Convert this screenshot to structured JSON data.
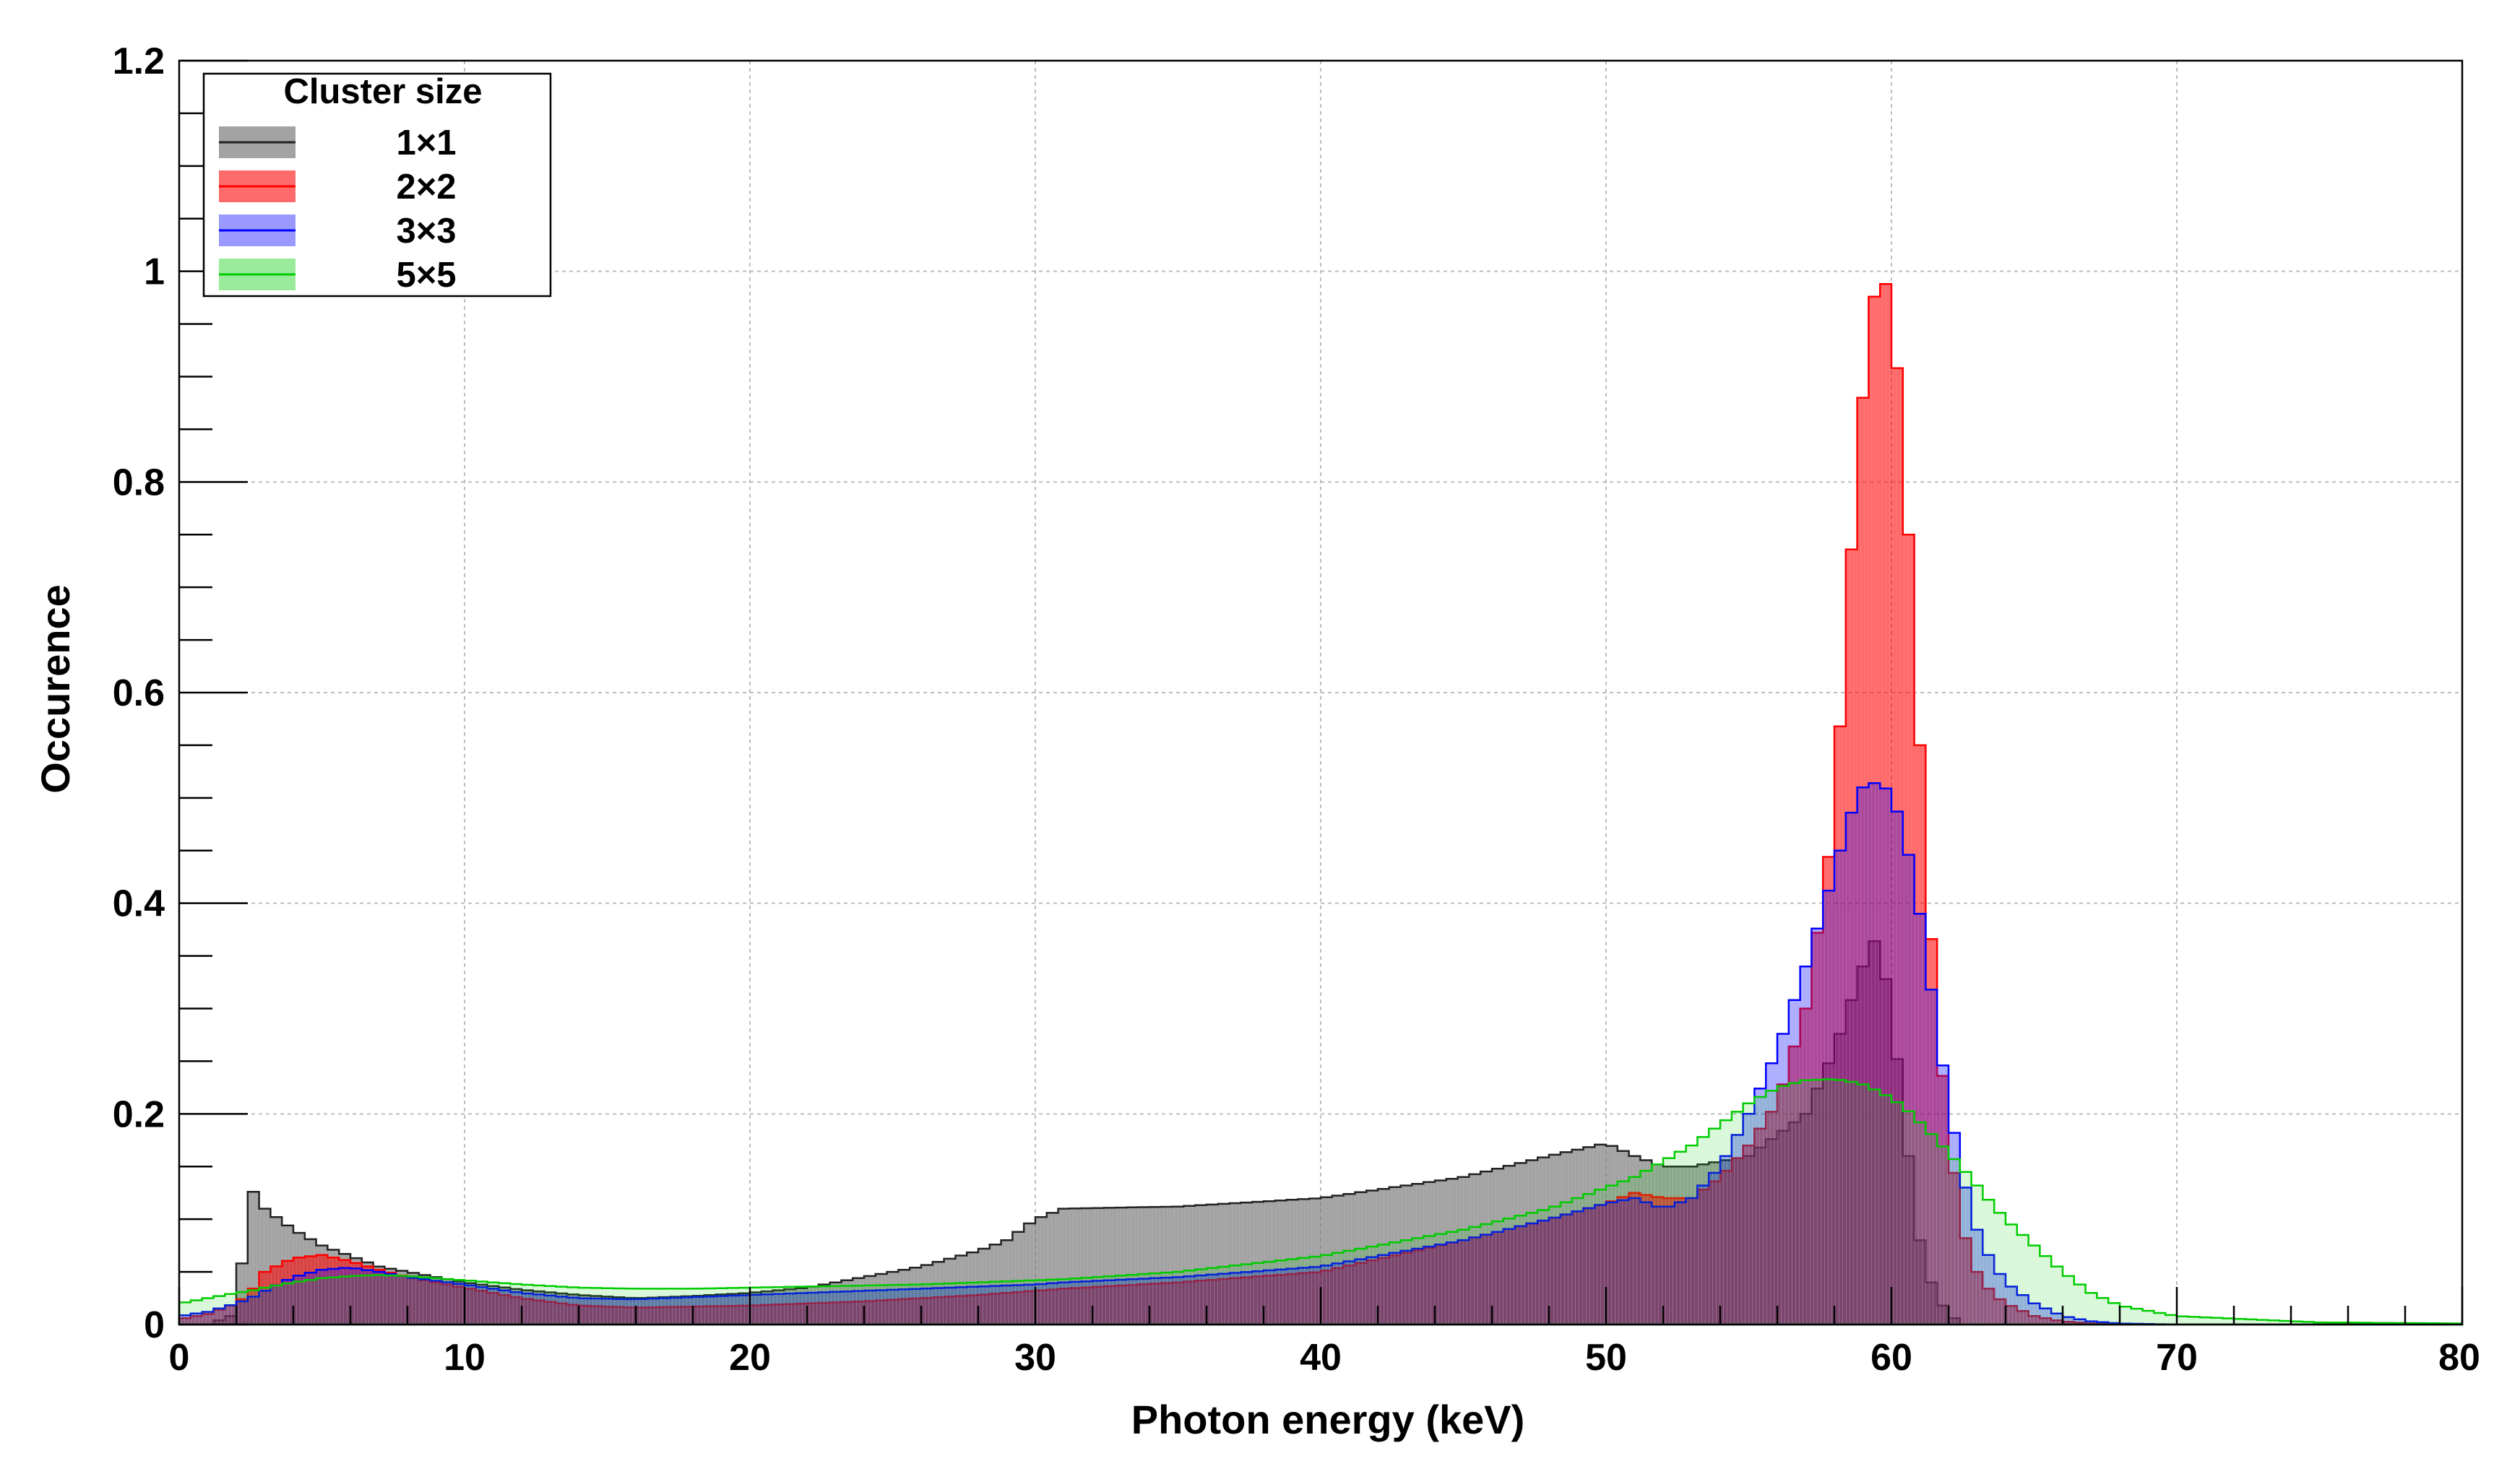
{
  "chart_data": {
    "type": "area",
    "xlabel": "Photon energy (keV)",
    "ylabel": "Occurence",
    "xlim": [
      0,
      80
    ],
    "ylim": [
      0,
      1.2
    ],
    "x_ticks": [
      "0",
      "10",
      "20",
      "30",
      "40",
      "50",
      "60",
      "70",
      "80"
    ],
    "y_ticks": [
      "0",
      "0.2",
      "0.4",
      "0.6",
      "0.8",
      "1",
      "1.2"
    ],
    "grid": true,
    "legend": {
      "title": "Cluster size",
      "placement": "top-left",
      "entries": [
        "1×1",
        "2×2",
        "3×3",
        "5×5"
      ]
    },
    "x": [
      0,
      1,
      2,
      2.5,
      3,
      4,
      5,
      6,
      7,
      8,
      10,
      12,
      14,
      16,
      18,
      20,
      22,
      24,
      26,
      28,
      29,
      30,
      31,
      35,
      40,
      45,
      48,
      50,
      51,
      52,
      53,
      54,
      55,
      56,
      57,
      58,
      58.5,
      59,
      59.5,
      60,
      60.5,
      61,
      61.5,
      62,
      62.5,
      63,
      63.5,
      64,
      65,
      66,
      67,
      68,
      70,
      75,
      80
    ],
    "series": [
      {
        "name": "1×1",
        "color": "#808080",
        "values": [
          0,
          0,
          0.01,
          0.13,
          0.11,
          0.09,
          0.075,
          0.065,
          0.055,
          0.05,
          0.04,
          0.033,
          0.028,
          0.025,
          0.027,
          0.03,
          0.035,
          0.045,
          0.055,
          0.07,
          0.08,
          0.1,
          0.11,
          0.112,
          0.12,
          0.14,
          0.16,
          0.172,
          0.16,
          0.15,
          0.15,
          0.155,
          0.16,
          0.18,
          0.2,
          0.26,
          0.3,
          0.34,
          0.37,
          0.3,
          0.18,
          0.08,
          0.03,
          0.01,
          0,
          0,
          0,
          0,
          0,
          0,
          0,
          0,
          0,
          0,
          0
        ]
      },
      {
        "name": "2×2",
        "color": "#ff0000",
        "values": [
          0.005,
          0.01,
          0.02,
          0.03,
          0.05,
          0.063,
          0.066,
          0.06,
          0.052,
          0.045,
          0.035,
          0.025,
          0.018,
          0.016,
          0.017,
          0.018,
          0.02,
          0.022,
          0.025,
          0.028,
          0.03,
          0.032,
          0.034,
          0.04,
          0.05,
          0.08,
          0.1,
          0.115,
          0.125,
          0.12,
          0.12,
          0.14,
          0.17,
          0.21,
          0.3,
          0.48,
          0.7,
          0.88,
          1.0,
          0.98,
          0.8,
          0.55,
          0.32,
          0.18,
          0.09,
          0.05,
          0.03,
          0.02,
          0.008,
          0.003,
          0.001,
          0,
          0,
          0,
          0
        ]
      },
      {
        "name": "3×3",
        "color": "#0000ff",
        "values": [
          0.008,
          0.012,
          0.02,
          0.025,
          0.032,
          0.045,
          0.052,
          0.054,
          0.05,
          0.045,
          0.038,
          0.03,
          0.025,
          0.024,
          0.026,
          0.028,
          0.03,
          0.032,
          0.034,
          0.036,
          0.037,
          0.038,
          0.04,
          0.045,
          0.055,
          0.08,
          0.1,
          0.115,
          0.12,
          0.11,
          0.12,
          0.15,
          0.2,
          0.26,
          0.34,
          0.43,
          0.48,
          0.51,
          0.515,
          0.505,
          0.46,
          0.39,
          0.3,
          0.21,
          0.14,
          0.09,
          0.06,
          0.04,
          0.02,
          0.008,
          0.003,
          0.001,
          0,
          0,
          0
        ]
      },
      {
        "name": "5×5",
        "color": "#00cc00",
        "values": [
          0.02,
          0.025,
          0.03,
          0.032,
          0.035,
          0.04,
          0.044,
          0.046,
          0.047,
          0.046,
          0.042,
          0.038,
          0.035,
          0.034,
          0.034,
          0.035,
          0.036,
          0.037,
          0.038,
          0.04,
          0.041,
          0.042,
          0.043,
          0.05,
          0.065,
          0.09,
          0.11,
          0.13,
          0.14,
          0.155,
          0.17,
          0.19,
          0.21,
          0.225,
          0.232,
          0.233,
          0.231,
          0.228,
          0.222,
          0.215,
          0.205,
          0.192,
          0.178,
          0.163,
          0.148,
          0.132,
          0.115,
          0.1,
          0.075,
          0.05,
          0.03,
          0.018,
          0.008,
          0.002,
          0.001
        ]
      }
    ]
  }
}
